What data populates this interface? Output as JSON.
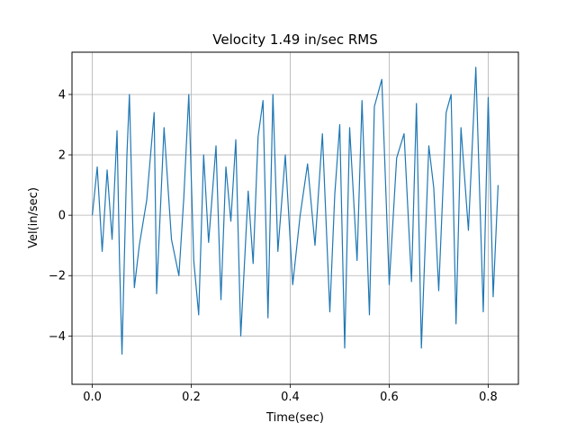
{
  "chart_data": {
    "type": "line",
    "title": "Velocity    1.49 in/sec RMS",
    "xlabel": "Time(sec)",
    "ylabel": "Vel(in/sec)",
    "xlim": [
      -0.041,
      0.861
    ],
    "ylim": [
      -5.6,
      5.4
    ],
    "xticks": [
      0.0,
      0.2,
      0.4,
      0.6,
      0.8
    ],
    "xtick_labels": [
      "0.0",
      "0.2",
      "0.4",
      "0.6",
      "0.8"
    ],
    "yticks": [
      -4,
      -2,
      0,
      2,
      4
    ],
    "ytick_labels": [
      "−4",
      "−2",
      "0",
      "2",
      "4"
    ],
    "grid": true,
    "color": "#1f77b4",
    "series": [
      {
        "x": [
          0.0,
          0.01,
          0.02,
          0.03,
          0.04,
          0.05,
          0.055,
          0.06,
          0.07,
          0.075,
          0.085,
          0.095,
          0.11,
          0.125,
          0.13,
          0.145,
          0.16,
          0.175,
          0.185,
          0.195,
          0.205,
          0.215,
          0.225,
          0.235,
          0.25,
          0.26,
          0.27,
          0.28,
          0.29,
          0.3,
          0.315,
          0.325,
          0.335,
          0.345,
          0.355,
          0.365,
          0.375,
          0.39,
          0.405,
          0.42,
          0.435,
          0.45,
          0.465,
          0.48,
          0.49,
          0.5,
          0.51,
          0.52,
          0.535,
          0.545,
          0.56,
          0.57,
          0.585,
          0.6,
          0.615,
          0.63,
          0.645,
          0.655,
          0.665,
          0.68,
          0.69,
          0.7,
          0.715,
          0.725,
          0.735,
          0.745,
          0.76,
          0.775,
          0.79,
          0.8,
          0.81,
          0.82
        ],
        "y": [
          0.0,
          1.6,
          -1.2,
          1.5,
          -0.8,
          2.8,
          -1.5,
          -4.6,
          2.0,
          4.0,
          -2.4,
          -1.0,
          0.5,
          3.4,
          -2.6,
          2.9,
          -0.8,
          -2.0,
          0.6,
          4.0,
          -1.5,
          -3.3,
          2.0,
          -0.9,
          2.3,
          -2.8,
          1.6,
          -0.2,
          2.5,
          -4.0,
          0.8,
          -1.6,
          2.6,
          3.8,
          -3.4,
          4.0,
          -1.2,
          2.0,
          -2.3,
          0.0,
          1.7,
          -1.0,
          2.7,
          -3.2,
          0.7,
          3.0,
          -4.4,
          2.9,
          -1.5,
          3.8,
          -3.3,
          3.6,
          4.5,
          -2.3,
          1.9,
          2.7,
          -2.2,
          3.7,
          -4.4,
          2.3,
          0.9,
          -2.5,
          3.4,
          4.0,
          -3.6,
          2.9,
          -0.5,
          4.9,
          -3.2,
          3.9,
          -2.7,
          1.0
        ]
      }
    ]
  }
}
